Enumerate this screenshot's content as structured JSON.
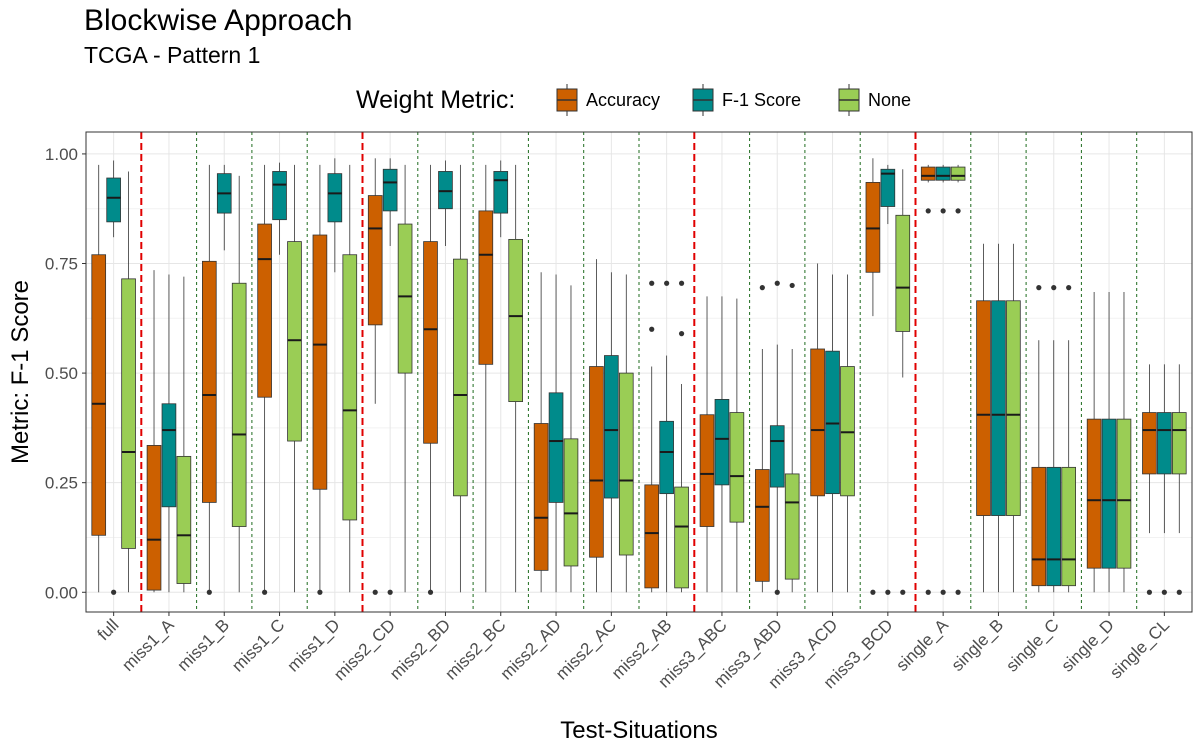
{
  "title": "Blockwise Approach",
  "subtitle": "TCGA - Pattern 1",
  "legend": {
    "title": "Weight Metric:",
    "placement": "top"
  },
  "colors": {
    "Accuracy": "#CC6000",
    "F-1 Score": "#008B8B",
    "None": "#9ACD55",
    "separator_major": "#E00000",
    "separator_minor": "#1E6B1E"
  },
  "chart_data": {
    "type": "boxplot",
    "title": "Blockwise Approach",
    "subtitle": "TCGA - Pattern 1",
    "xlabel": "Test-Situations",
    "ylabel": "Metric: F-1 Score",
    "ylim": [
      -0.045,
      1.05
    ],
    "yticks": [
      0.0,
      0.25,
      0.5,
      0.75,
      1.0
    ],
    "ytick_labels": [
      "0.00",
      "0.25",
      "0.50",
      "0.75",
      "1.00"
    ],
    "grid": true,
    "categories": [
      "full",
      "miss1_A",
      "miss1_B",
      "miss1_C",
      "miss1_D",
      "miss2_CD",
      "miss2_BD",
      "miss2_BC",
      "miss2_AD",
      "miss2_AC",
      "miss2_AB",
      "miss3_ABC",
      "miss3_ABD",
      "miss3_ACD",
      "miss3_BCD",
      "single_A",
      "single_B",
      "single_C",
      "single_D",
      "single_CL"
    ],
    "major_separators_after": [
      0,
      4,
      10,
      14
    ],
    "series": [
      {
        "name": "Accuracy",
        "color": "#CC6000",
        "boxes": [
          {
            "min": 0.0,
            "q1": 0.13,
            "median": 0.43,
            "q3": 0.77,
            "max": 0.975,
            "outliers": []
          },
          {
            "min": 0.0,
            "q1": 0.005,
            "median": 0.12,
            "q3": 0.335,
            "max": 0.735,
            "outliers": []
          },
          {
            "min": 0.0,
            "q1": 0.205,
            "median": 0.45,
            "q3": 0.755,
            "max": 0.975,
            "outliers": [
              0.0
            ]
          },
          {
            "min": 0.0,
            "q1": 0.445,
            "median": 0.76,
            "q3": 0.84,
            "max": 0.975,
            "outliers": [
              0.0
            ]
          },
          {
            "min": 0.0,
            "q1": 0.235,
            "median": 0.565,
            "q3": 0.815,
            "max": 0.975,
            "outliers": [
              0.0
            ]
          },
          {
            "min": 0.43,
            "q1": 0.61,
            "median": 0.83,
            "q3": 0.905,
            "max": 0.99,
            "outliers": [
              0.0
            ]
          },
          {
            "min": 0.0,
            "q1": 0.34,
            "median": 0.6,
            "q3": 0.8,
            "max": 0.975,
            "outliers": [
              0.0
            ]
          },
          {
            "min": 0.0,
            "q1": 0.52,
            "median": 0.77,
            "q3": 0.87,
            "max": 0.975,
            "outliers": []
          },
          {
            "min": 0.0,
            "q1": 0.05,
            "median": 0.17,
            "q3": 0.385,
            "max": 0.73,
            "outliers": []
          },
          {
            "min": 0.0,
            "q1": 0.08,
            "median": 0.255,
            "q3": 0.515,
            "max": 0.76,
            "outliers": []
          },
          {
            "min": 0.0,
            "q1": 0.01,
            "median": 0.135,
            "q3": 0.245,
            "max": 0.515,
            "outliers": [
              0.6,
              0.705
            ]
          },
          {
            "min": 0.0,
            "q1": 0.15,
            "median": 0.27,
            "q3": 0.405,
            "max": 0.675,
            "outliers": []
          },
          {
            "min": 0.0,
            "q1": 0.025,
            "median": 0.195,
            "q3": 0.28,
            "max": 0.555,
            "outliers": [
              0.695
            ]
          },
          {
            "min": 0.0,
            "q1": 0.22,
            "median": 0.37,
            "q3": 0.555,
            "max": 0.75,
            "outliers": []
          },
          {
            "min": 0.63,
            "q1": 0.73,
            "median": 0.83,
            "q3": 0.935,
            "max": 0.99,
            "outliers": [
              0.0
            ]
          },
          {
            "min": 0.935,
            "q1": 0.94,
            "median": 0.95,
            "q3": 0.97,
            "max": 0.975,
            "outliers": [
              0.87,
              0.0
            ]
          },
          {
            "min": 0.0,
            "q1": 0.175,
            "median": 0.405,
            "q3": 0.665,
            "max": 0.795,
            "outliers": []
          },
          {
            "min": 0.0,
            "q1": 0.015,
            "median": 0.075,
            "q3": 0.285,
            "max": 0.575,
            "outliers": [
              0.695
            ]
          },
          {
            "min": 0.0,
            "q1": 0.055,
            "median": 0.21,
            "q3": 0.395,
            "max": 0.685,
            "outliers": []
          },
          {
            "min": 0.135,
            "q1": 0.27,
            "median": 0.37,
            "q3": 0.41,
            "max": 0.52,
            "outliers": [
              0.0
            ]
          }
        ]
      },
      {
        "name": "F-1 Score",
        "color": "#008B8B",
        "boxes": [
          {
            "min": 0.81,
            "q1": 0.845,
            "median": 0.9,
            "q3": 0.945,
            "max": 0.985,
            "outliers": [
              0.0
            ]
          },
          {
            "min": 0.0,
            "q1": 0.195,
            "median": 0.37,
            "q3": 0.43,
            "max": 0.725,
            "outliers": []
          },
          {
            "min": 0.78,
            "q1": 0.865,
            "median": 0.91,
            "q3": 0.955,
            "max": 0.975,
            "outliers": []
          },
          {
            "min": 0.77,
            "q1": 0.85,
            "median": 0.93,
            "q3": 0.96,
            "max": 0.98,
            "outliers": []
          },
          {
            "min": 0.73,
            "q1": 0.845,
            "median": 0.91,
            "q3": 0.955,
            "max": 0.99,
            "outliers": []
          },
          {
            "min": 0.79,
            "q1": 0.87,
            "median": 0.935,
            "q3": 0.965,
            "max": 0.99,
            "outliers": [
              0.0
            ]
          },
          {
            "min": 0.79,
            "q1": 0.875,
            "median": 0.915,
            "q3": 0.96,
            "max": 0.985,
            "outliers": []
          },
          {
            "min": 0.81,
            "q1": 0.865,
            "median": 0.94,
            "q3": 0.96,
            "max": 0.985,
            "outliers": []
          },
          {
            "min": 0.0,
            "q1": 0.205,
            "median": 0.345,
            "q3": 0.455,
            "max": 0.725,
            "outliers": []
          },
          {
            "min": 0.0,
            "q1": 0.215,
            "median": 0.37,
            "q3": 0.54,
            "max": 0.73,
            "outliers": []
          },
          {
            "min": 0.0,
            "q1": 0.225,
            "median": 0.32,
            "q3": 0.39,
            "max": 0.54,
            "outliers": [
              0.705
            ]
          },
          {
            "min": 0.0,
            "q1": 0.245,
            "median": 0.35,
            "q3": 0.44,
            "max": 0.675,
            "outliers": []
          },
          {
            "min": 0.0,
            "q1": 0.24,
            "median": 0.345,
            "q3": 0.38,
            "max": 0.565,
            "outliers": [
              0.0,
              0.705
            ]
          },
          {
            "min": 0.0,
            "q1": 0.225,
            "median": 0.385,
            "q3": 0.55,
            "max": 0.725,
            "outliers": []
          },
          {
            "min": 0.84,
            "q1": 0.88,
            "median": 0.955,
            "q3": 0.965,
            "max": 0.975,
            "outliers": [
              0.0
            ]
          },
          {
            "min": 0.935,
            "q1": 0.94,
            "median": 0.95,
            "q3": 0.97,
            "max": 0.975,
            "outliers": [
              0.87,
              0.0
            ]
          },
          {
            "min": 0.0,
            "q1": 0.175,
            "median": 0.405,
            "q3": 0.665,
            "max": 0.795,
            "outliers": []
          },
          {
            "min": 0.0,
            "q1": 0.015,
            "median": 0.075,
            "q3": 0.285,
            "max": 0.575,
            "outliers": [
              0.695
            ]
          },
          {
            "min": 0.0,
            "q1": 0.055,
            "median": 0.21,
            "q3": 0.395,
            "max": 0.685,
            "outliers": []
          },
          {
            "min": 0.135,
            "q1": 0.27,
            "median": 0.37,
            "q3": 0.41,
            "max": 0.52,
            "outliers": [
              0.0
            ]
          }
        ]
      },
      {
        "name": "None",
        "color": "#9ACD55",
        "boxes": [
          {
            "min": 0.0,
            "q1": 0.1,
            "median": 0.32,
            "q3": 0.715,
            "max": 0.96,
            "outliers": []
          },
          {
            "min": 0.0,
            "q1": 0.02,
            "median": 0.13,
            "q3": 0.31,
            "max": 0.72,
            "outliers": []
          },
          {
            "min": 0.0,
            "q1": 0.15,
            "median": 0.36,
            "q3": 0.705,
            "max": 0.95,
            "outliers": []
          },
          {
            "min": 0.0,
            "q1": 0.345,
            "median": 0.575,
            "q3": 0.8,
            "max": 0.975,
            "outliers": []
          },
          {
            "min": 0.0,
            "q1": 0.165,
            "median": 0.415,
            "q3": 0.77,
            "max": 0.975,
            "outliers": []
          },
          {
            "min": 0.0,
            "q1": 0.5,
            "median": 0.675,
            "q3": 0.84,
            "max": 0.975,
            "outliers": []
          },
          {
            "min": 0.0,
            "q1": 0.22,
            "median": 0.45,
            "q3": 0.76,
            "max": 0.975,
            "outliers": []
          },
          {
            "min": 0.0,
            "q1": 0.435,
            "median": 0.63,
            "q3": 0.805,
            "max": 0.975,
            "outliers": []
          },
          {
            "min": 0.0,
            "q1": 0.06,
            "median": 0.18,
            "q3": 0.35,
            "max": 0.7,
            "outliers": []
          },
          {
            "min": 0.0,
            "q1": 0.085,
            "median": 0.255,
            "q3": 0.5,
            "max": 0.725,
            "outliers": []
          },
          {
            "min": 0.0,
            "q1": 0.01,
            "median": 0.15,
            "q3": 0.24,
            "max": 0.475,
            "outliers": [
              0.59,
              0.705
            ]
          },
          {
            "min": 0.0,
            "q1": 0.16,
            "median": 0.265,
            "q3": 0.41,
            "max": 0.67,
            "outliers": []
          },
          {
            "min": 0.0,
            "q1": 0.03,
            "median": 0.205,
            "q3": 0.27,
            "max": 0.555,
            "outliers": [
              0.7
            ]
          },
          {
            "min": 0.0,
            "q1": 0.22,
            "median": 0.365,
            "q3": 0.515,
            "max": 0.725,
            "outliers": []
          },
          {
            "min": 0.49,
            "q1": 0.595,
            "median": 0.695,
            "q3": 0.86,
            "max": 0.965,
            "outliers": [
              0.0
            ]
          },
          {
            "min": 0.935,
            "q1": 0.94,
            "median": 0.95,
            "q3": 0.97,
            "max": 0.975,
            "outliers": [
              0.87,
              0.0
            ]
          },
          {
            "min": 0.0,
            "q1": 0.175,
            "median": 0.405,
            "q3": 0.665,
            "max": 0.795,
            "outliers": []
          },
          {
            "min": 0.0,
            "q1": 0.015,
            "median": 0.075,
            "q3": 0.285,
            "max": 0.575,
            "outliers": [
              0.695
            ]
          },
          {
            "min": 0.0,
            "q1": 0.055,
            "median": 0.21,
            "q3": 0.395,
            "max": 0.685,
            "outliers": []
          },
          {
            "min": 0.135,
            "q1": 0.27,
            "median": 0.37,
            "q3": 0.41,
            "max": 0.52,
            "outliers": [
              0.0
            ]
          }
        ]
      }
    ]
  }
}
